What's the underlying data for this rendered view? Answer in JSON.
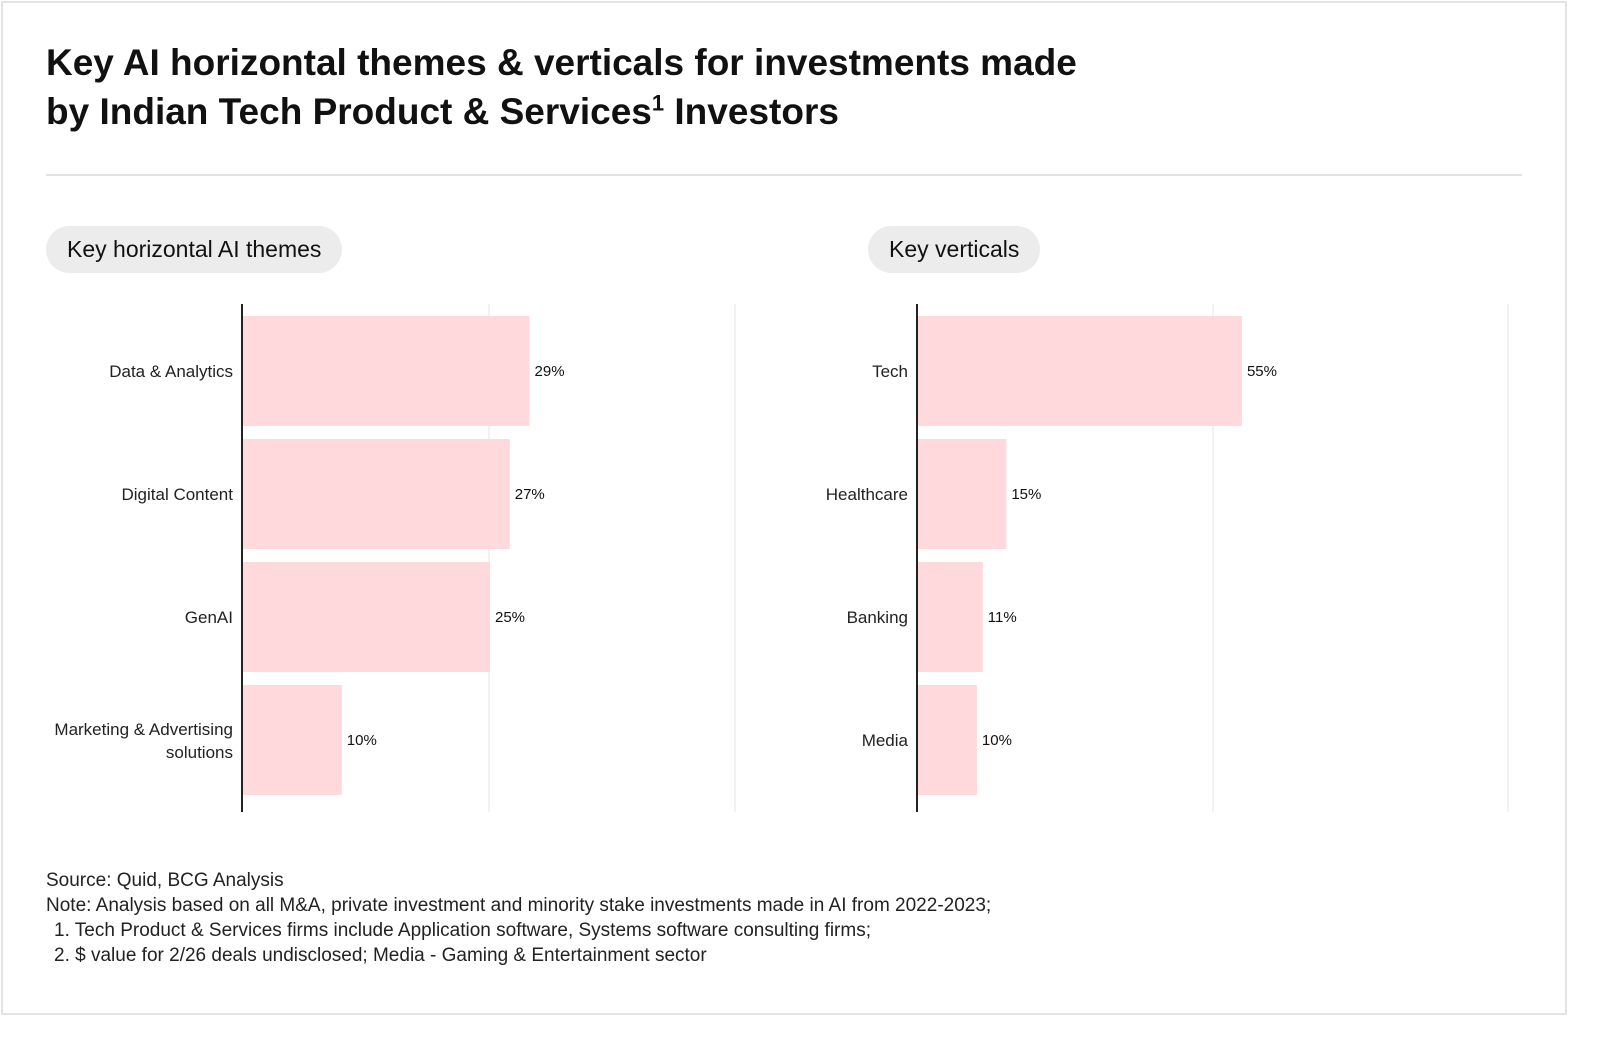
{
  "title": {
    "line1": "Key AI horizontal themes & verticals for investments made",
    "line2_pre": "by Indian Tech Product & Services",
    "line2_sup": "1",
    "line2_post": " Investors"
  },
  "colors": {
    "bar": "#ffd9dc",
    "axis": "#222222",
    "grid": "#e6e6e6",
    "pill": "#ececec"
  },
  "chart_data": [
    {
      "type": "bar",
      "orientation": "horizontal",
      "title": "Key horizontal AI themes",
      "categories": [
        "Data & Analytics",
        "Digital Content",
        "GenAI",
        "Marketing & Advertising solutions"
      ],
      "values": [
        29,
        27,
        25,
        10
      ],
      "value_labels": [
        "29%",
        "27%",
        "25%",
        "10%"
      ],
      "xlim": [
        0,
        100
      ],
      "grid": true
    },
    {
      "type": "bar",
      "orientation": "horizontal",
      "title": "Key verticals",
      "categories": [
        "Tech",
        "Healthcare",
        "Banking",
        "Media"
      ],
      "values": [
        55,
        15,
        11,
        10
      ],
      "value_labels": [
        "55%",
        "15%",
        "11%",
        "10%"
      ],
      "xlim": [
        0,
        100
      ],
      "grid": true
    }
  ],
  "footer": {
    "source": "Source: Quid, BCG Analysis",
    "note": "Note: Analysis based on all M&A, private investment and minority stake investments made in AI from 2022-2023;",
    "items": [
      "1. Tech Product & Services firms include Application software, Systems software consulting firms;",
      "2. $ value for 2/26 deals undisclosed; Media - Gaming & Entertainment sector"
    ]
  }
}
